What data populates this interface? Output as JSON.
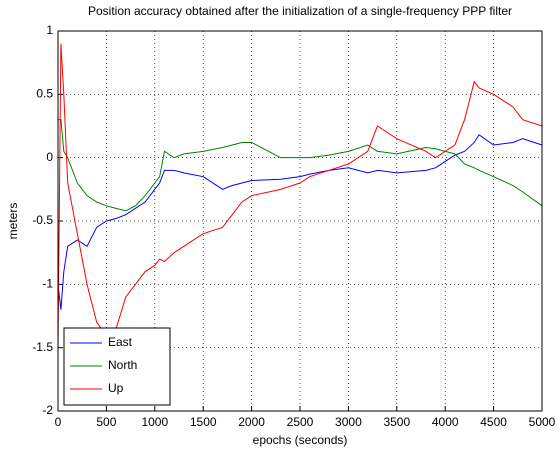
{
  "chart_data": {
    "type": "line",
    "title": "Position accuracy obtained after the initialization of a single-frequency PPP filter",
    "xlabel": "epochs (seconds)",
    "ylabel": "meters",
    "x": [
      0,
      30,
      60,
      100,
      200,
      300,
      400,
      500,
      600,
      700,
      800,
      900,
      1000,
      1050,
      1100,
      1200,
      1300,
      1500,
      1700,
      1800,
      1900,
      2000,
      2300,
      2500,
      2600,
      2800,
      3000,
      3200,
      3300,
      3500,
      3800,
      3900,
      4000,
      4100,
      4200,
      4300,
      4350,
      4500,
      4700,
      4800,
      5000
    ],
    "series": [
      {
        "name": "East",
        "color": "#0000ff",
        "values": [
          -1.0,
          -1.2,
          -0.9,
          -0.7,
          -0.65,
          -0.7,
          -0.55,
          -0.5,
          -0.48,
          -0.45,
          -0.4,
          -0.35,
          -0.25,
          -0.2,
          -0.1,
          -0.1,
          -0.12,
          -0.15,
          -0.25,
          -0.22,
          -0.2,
          -0.18,
          -0.17,
          -0.15,
          -0.13,
          -0.1,
          -0.08,
          -0.12,
          -0.1,
          -0.12,
          -0.1,
          -0.08,
          -0.03,
          0.02,
          0.05,
          0.12,
          0.18,
          0.1,
          0.12,
          0.15,
          0.1
        ]
      },
      {
        "name": "North",
        "color": "#008000",
        "values": [
          0.3,
          0.3,
          0.05,
          0,
          -0.2,
          -0.3,
          -0.35,
          -0.38,
          -0.4,
          -0.42,
          -0.38,
          -0.3,
          -0.2,
          -0.15,
          0.05,
          0.0,
          0.03,
          0.05,
          0.08,
          0.1,
          0.12,
          0.12,
          0.0,
          0.0,
          0.0,
          0.02,
          0.05,
          0.1,
          0.05,
          0.03,
          0.08,
          0.07,
          0.05,
          0.03,
          -0.05,
          -0.08,
          -0.1,
          -0.15,
          -0.22,
          -0.27,
          -0.38
        ]
      },
      {
        "name": "Up",
        "color": "#ff0000",
        "values": [
          -1.5,
          0.9,
          0.5,
          -0.2,
          -0.6,
          -1.0,
          -1.3,
          -1.4,
          -1.35,
          -1.1,
          -1.0,
          -0.9,
          -0.85,
          -0.8,
          -0.82,
          -0.75,
          -0.7,
          -0.6,
          -0.55,
          -0.45,
          -0.35,
          -0.3,
          -0.25,
          -0.2,
          -0.15,
          -0.1,
          -0.05,
          0.05,
          0.25,
          0.15,
          0.05,
          0.0,
          0.05,
          0.1,
          0.3,
          0.6,
          0.55,
          0.5,
          0.4,
          0.3,
          0.25
        ]
      }
    ],
    "xlim": [
      0,
      5000
    ],
    "xticks": [
      0,
      500,
      1000,
      1500,
      2000,
      2500,
      3000,
      3500,
      4000,
      4500,
      5000
    ],
    "ylim": [
      -2,
      1
    ],
    "yticks": [
      1,
      0.5,
      0,
      -0.5,
      -1,
      -1.5,
      -2
    ],
    "grid": true,
    "legend": "lower-left"
  }
}
